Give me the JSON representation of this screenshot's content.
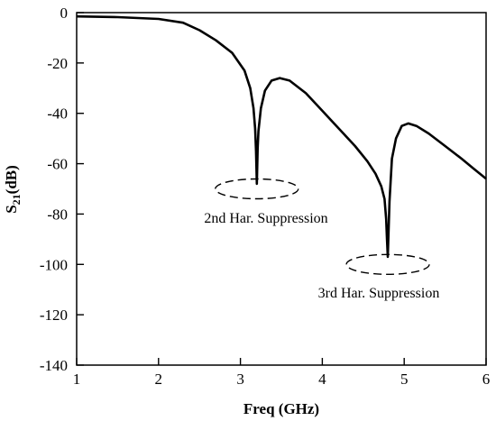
{
  "chart_data": {
    "type": "line",
    "title": "",
    "xlabel": "Freq (GHz)",
    "ylabel": {
      "main": "S",
      "sub": "21",
      "rest": "(dB)"
    },
    "xlim": [
      1,
      6
    ],
    "ylim": [
      -140,
      0
    ],
    "xticks": [
      1,
      2,
      3,
      4,
      5,
      6
    ],
    "yticks": [
      0,
      -20,
      -40,
      -60,
      -80,
      -100,
      -120,
      -140
    ],
    "grid": false,
    "legend": "none",
    "line_color": "#000000",
    "series": [
      {
        "x": [
          1.0,
          1.5,
          2.0,
          2.3,
          2.5,
          2.7,
          2.9,
          3.05,
          3.12,
          3.16,
          3.18,
          3.19,
          3.2,
          3.21,
          3.22,
          3.25,
          3.3,
          3.38,
          3.48,
          3.6,
          3.8,
          4.0,
          4.2,
          4.4,
          4.55,
          4.65,
          4.72,
          4.76,
          4.78,
          4.79,
          4.8,
          4.82,
          4.85,
          4.9,
          4.97,
          5.05,
          5.15,
          5.3,
          5.5,
          5.7,
          5.85,
          6.0
        ],
        "y": [
          -1.5,
          -1.8,
          -2.5,
          -4,
          -7,
          -11,
          -16,
          -23,
          -30,
          -38,
          -46,
          -55,
          -68,
          -54,
          -47,
          -38,
          -31,
          -27,
          -26,
          -27,
          -32,
          -39,
          -46,
          -53,
          -59,
          -64,
          -69,
          -74,
          -82,
          -90,
          -97,
          -75,
          -58,
          -50,
          -45,
          -44,
          -45,
          -48,
          -53,
          -58,
          -62,
          -66
        ]
      }
    ],
    "annotations": [
      {
        "text": "2nd Har. Suppression",
        "x": 3.2,
        "y": -70
      },
      {
        "text": "3rd Har. Suppression",
        "x": 4.8,
        "y": -100
      }
    ]
  }
}
